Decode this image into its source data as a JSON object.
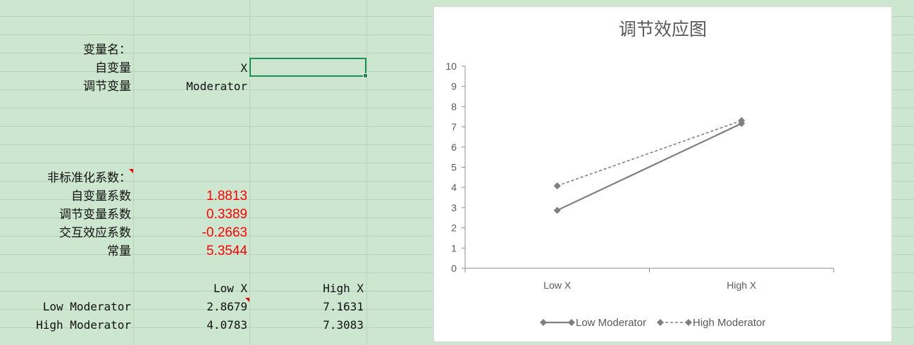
{
  "sheet": {
    "var_header": "变量名：",
    "iv_label": "自变量",
    "iv_value": "X",
    "mod_label": "调节变量",
    "mod_value": "Moderator",
    "coef_header": "非标准化系数：",
    "coefs": [
      {
        "label": "自变量系数",
        "value": "1.8813"
      },
      {
        "label": "调节变量系数",
        "value": "0.3389"
      },
      {
        "label": "交互效应系数",
        "value": "-0.2663"
      },
      {
        "label": "常量",
        "value": "5.3544"
      }
    ],
    "table": {
      "col_headers": [
        "Low X",
        "High X"
      ],
      "rows": [
        {
          "label": "Low Moderator",
          "values": [
            "2.8679",
            "7.1631"
          ]
        },
        {
          "label": "High Moderator",
          "values": [
            "4.0783",
            "7.3083"
          ]
        }
      ]
    },
    "accent_color": "#1e8e55",
    "coef_color": "#ff0000"
  },
  "chart_data": {
    "type": "line",
    "title": "调节效应图",
    "categories": [
      "Low X",
      "High X"
    ],
    "series": [
      {
        "name": "Low Moderator",
        "values": [
          2.8679,
          7.1631
        ],
        "style": "solid",
        "color": "#7f7f7f"
      },
      {
        "name": "High Moderator",
        "values": [
          4.0783,
          7.3083
        ],
        "style": "dashed",
        "color": "#7f7f7f"
      }
    ],
    "ylim": [
      0,
      10
    ],
    "yticks": [
      0,
      1,
      2,
      3,
      4,
      5,
      6,
      7,
      8,
      9,
      10
    ],
    "grid": false,
    "legend_position": "bottom",
    "xlabel": "",
    "ylabel": ""
  }
}
